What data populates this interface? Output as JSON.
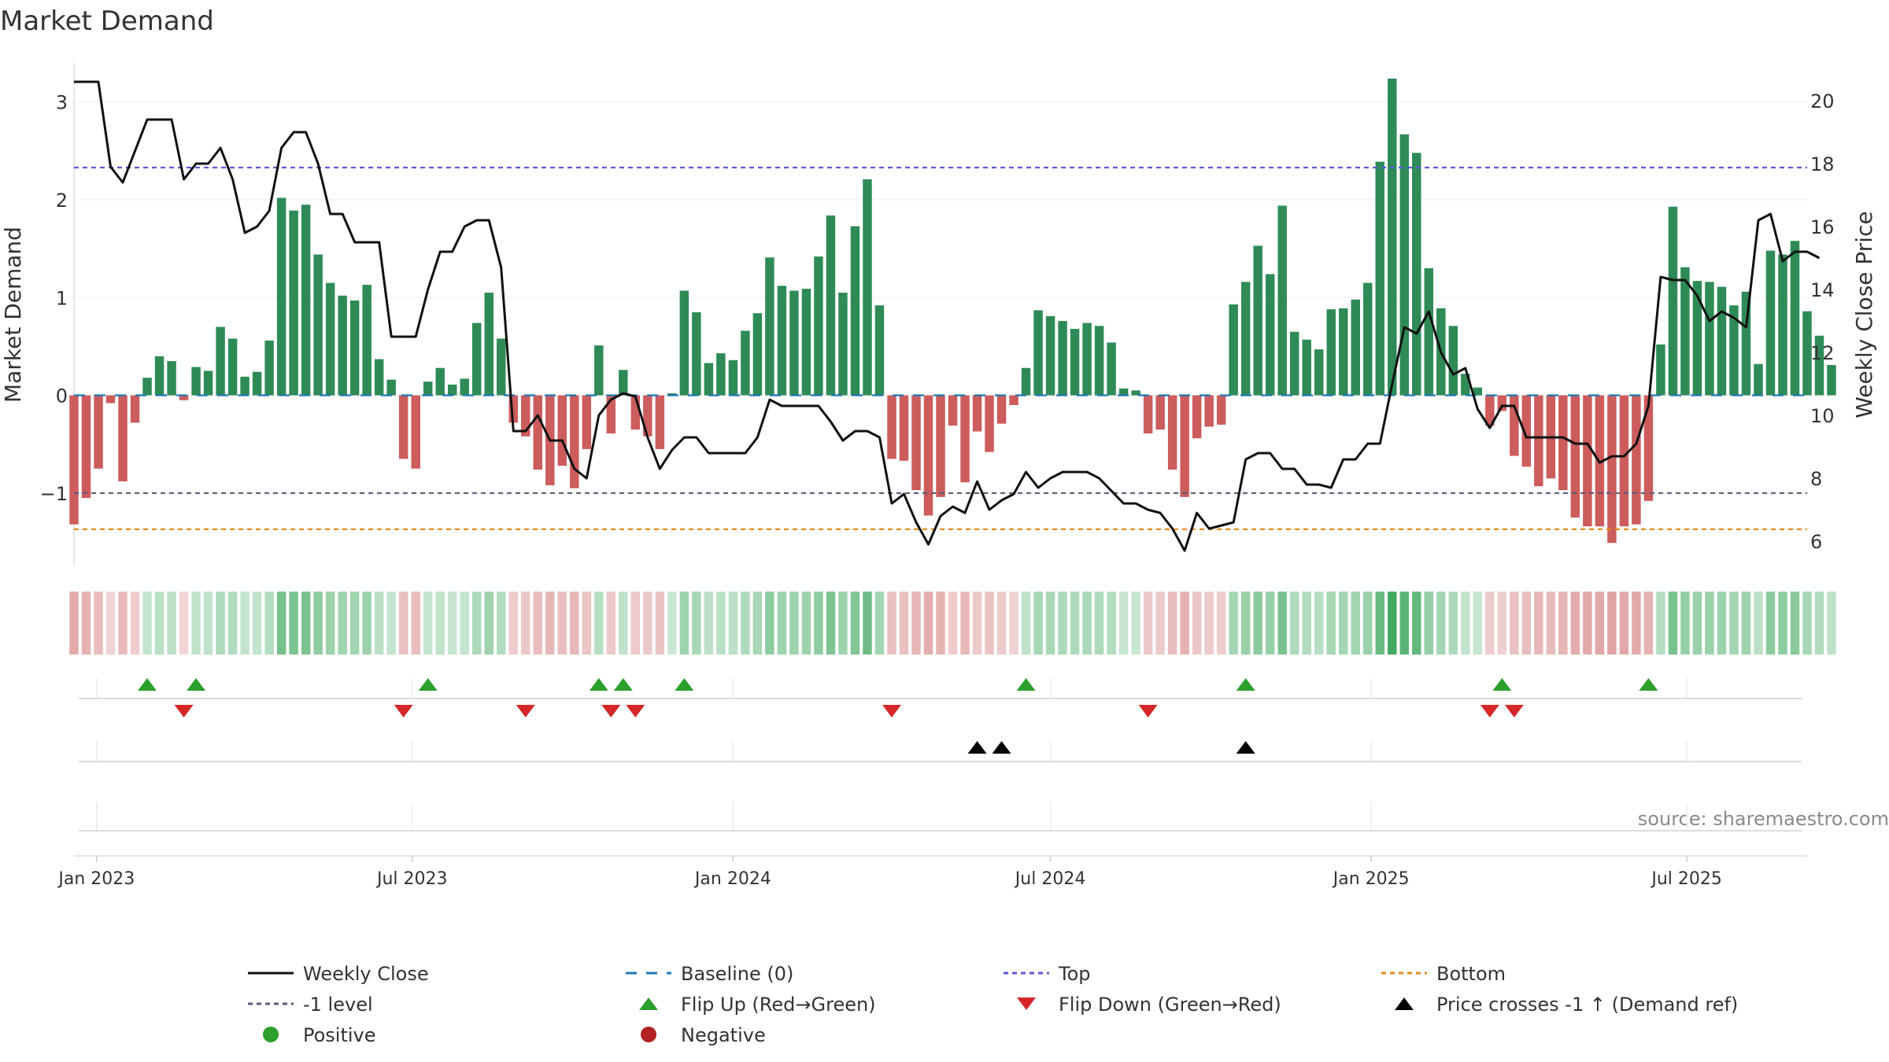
{
  "chart_data": {
    "type": "bar",
    "title": "Market Demand",
    "ylabel": "Market Demand",
    "y2label": "Weekly Close Price",
    "ylim": [
      -1.75,
      3.4
    ],
    "y2lim": [
      5.2,
      21.2
    ],
    "yticks": [
      -1,
      0,
      1,
      2,
      3
    ],
    "ytick_labels": [
      "−1",
      "0",
      "1",
      "2",
      "3"
    ],
    "y2ticks": [
      6,
      8,
      10,
      12,
      14,
      16,
      18,
      20
    ],
    "x_start": "2022-12-19",
    "x_end": "2025-09-08",
    "xticks": [
      {
        "date": "2023-01-01",
        "label": "Jan 2023"
      },
      {
        "date": "2023-07-01",
        "label": "Jul 2023"
      },
      {
        "date": "2024-01-01",
        "label": "Jan 2024"
      },
      {
        "date": "2024-07-01",
        "label": "Jul 2024"
      },
      {
        "date": "2025-01-01",
        "label": "Jan 2025"
      },
      {
        "date": "2025-07-01",
        "label": "Jul 2025"
      }
    ],
    "week_start": "2022-12-19",
    "demand": [
      -1.32,
      -1.05,
      -0.75,
      -0.08,
      -0.88,
      -0.28,
      0.18,
      0.4,
      0.35,
      -0.05,
      0.29,
      0.25,
      0.7,
      0.58,
      0.19,
      0.24,
      0.56,
      2.02,
      1.89,
      1.95,
      1.44,
      1.15,
      1.02,
      0.97,
      1.13,
      0.37,
      0.16,
      -0.65,
      -0.75,
      0.14,
      0.28,
      0.11,
      0.17,
      0.74,
      1.05,
      0.58,
      -0.28,
      -0.42,
      -0.76,
      -0.92,
      -0.72,
      -0.95,
      -0.55,
      0.51,
      -0.39,
      0.26,
      -0.35,
      -0.42,
      -0.55,
      0.02,
      1.07,
      0.85,
      0.33,
      0.43,
      0.36,
      0.66,
      0.84,
      1.41,
      1.12,
      1.07,
      1.09,
      1.42,
      1.84,
      1.05,
      1.73,
      2.21,
      0.92,
      -0.65,
      -0.67,
      -0.97,
      -1.23,
      -1.04,
      -0.31,
      -0.89,
      -0.37,
      -0.58,
      -0.29,
      -0.1,
      0.28,
      0.87,
      0.81,
      0.76,
      0.68,
      0.74,
      0.71,
      0.54,
      0.07,
      0.05,
      -0.39,
      -0.35,
      -0.76,
      -1.04,
      -0.44,
      -0.32,
      -0.3,
      0.93,
      1.16,
      1.53,
      1.24,
      1.94,
      0.65,
      0.57,
      0.47,
      0.88,
      0.89,
      0.98,
      1.15,
      2.39,
      3.24,
      2.67,
      2.48,
      1.3,
      0.89,
      0.71,
      0.22,
      0.08,
      -0.31,
      -0.16,
      -0.62,
      -0.73,
      -0.93,
      -0.85,
      -0.97,
      -1.25,
      -1.34,
      -1.34,
      -1.51,
      -1.34,
      -1.32,
      -1.08,
      0.52,
      1.93,
      1.31,
      1.17,
      1.16,
      1.11,
      0.92,
      1.06,
      0.32,
      1.48,
      1.44,
      1.58,
      0.86,
      0.61,
      0.31
    ],
    "price": [
      20.6,
      20.6,
      20.6,
      17.9,
      17.4,
      18.4,
      19.4,
      19.4,
      19.4,
      17.5,
      18.0,
      18.0,
      18.5,
      17.5,
      15.8,
      16.0,
      16.5,
      18.5,
      19.0,
      19.0,
      18.0,
      16.4,
      16.4,
      15.5,
      15.5,
      15.5,
      12.5,
      12.5,
      12.5,
      14.0,
      15.2,
      15.2,
      16.0,
      16.2,
      16.2,
      14.7,
      9.5,
      9.5,
      10.0,
      9.2,
      9.2,
      8.3,
      8.0,
      10.0,
      10.5,
      10.7,
      10.6,
      9.3,
      8.3,
      8.9,
      9.3,
      9.3,
      8.8,
      8.8,
      8.8,
      8.8,
      9.3,
      10.5,
      10.3,
      10.3,
      10.3,
      10.3,
      9.8,
      9.2,
      9.5,
      9.5,
      9.3,
      7.2,
      7.5,
      6.6,
      5.9,
      6.8,
      7.1,
      6.9,
      7.9,
      7.0,
      7.3,
      7.5,
      8.2,
      7.7,
      8.0,
      8.2,
      8.2,
      8.2,
      8.0,
      7.6,
      7.2,
      7.2,
      7.0,
      6.9,
      6.4,
      5.7,
      6.9,
      6.4,
      6.5,
      6.6,
      8.6,
      8.8,
      8.8,
      8.3,
      8.3,
      7.8,
      7.8,
      7.7,
      8.6,
      8.6,
      9.1,
      9.1,
      11.0,
      12.8,
      12.6,
      13.3,
      12.0,
      11.3,
      11.5,
      10.2,
      9.6,
      10.3,
      10.3,
      9.3,
      9.3,
      9.3,
      9.3,
      9.1,
      9.1,
      8.5,
      8.7,
      8.7,
      9.1,
      10.3,
      14.4,
      14.3,
      14.3,
      13.8,
      13.0,
      13.3,
      13.1,
      12.8,
      16.2,
      16.4,
      14.9,
      15.2,
      15.2,
      15.0
    ],
    "series": [
      {
        "name": "Weekly Close",
        "color": "#111111"
      },
      {
        "name": "Baseline (0)",
        "value": 0,
        "color": "#1f77b4"
      },
      {
        "name": "Top",
        "value": 2.33,
        "color": "#5b5bd6"
      },
      {
        "name": "Bottom",
        "value": -1.37,
        "color": "#e38b1e"
      },
      {
        "name": "-1 level",
        "value": -1,
        "color": "#5a5a7a"
      }
    ],
    "positive_color": "#2e8b57",
    "negative_color": "#cd5c5c",
    "flip_up_indices": [
      6,
      10,
      29,
      43,
      45,
      50,
      78,
      96,
      117,
      129
    ],
    "flip_down_indices": [
      9,
      27,
      37,
      44,
      46,
      67,
      88,
      116,
      118
    ],
    "price_cross_indices": [
      74,
      76,
      96
    ],
    "legend": [
      {
        "label": "Weekly Close",
        "kind": "line-solid",
        "color": "#111111"
      },
      {
        "label": "Baseline (0)",
        "kind": "line-dash",
        "color": "#1f77b4"
      },
      {
        "label": "Top",
        "kind": "line-dot",
        "color": "#5b5bd6"
      },
      {
        "label": "Bottom",
        "kind": "line-dot",
        "color": "#e38b1e"
      },
      {
        "label": "-1 level",
        "kind": "line-dot",
        "color": "#5a5a7a"
      },
      {
        "label": "Flip Up (Red→Green)",
        "kind": "tri-up",
        "color": "#2ca02c"
      },
      {
        "label": "Flip Down (Green→Red)",
        "kind": "tri-down",
        "color": "#d62728"
      },
      {
        "label": "Price crosses -1 ↑ (Demand ref)",
        "kind": "tri-up",
        "color": "#000000"
      },
      {
        "label": "Positive",
        "kind": "dot",
        "color": "#2ca02c"
      },
      {
        "label": "Negative",
        "kind": "dot",
        "color": "#b22222"
      }
    ],
    "source": "source: sharemaestro.com"
  }
}
